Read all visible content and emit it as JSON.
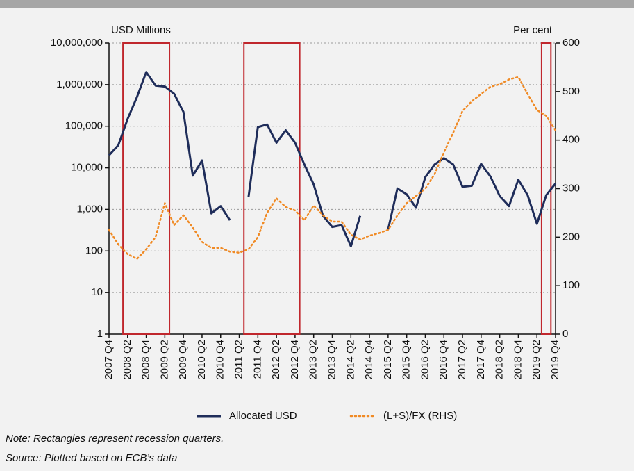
{
  "chart_data": {
    "type": "line",
    "y_label": "USD Millions",
    "y2_label": "Per cent",
    "categories": [
      "2007 Q4",
      null,
      "2008 Q2",
      null,
      "2008 Q4",
      null,
      "2009 Q2",
      null,
      "2009 Q4",
      null,
      "2010 Q2",
      null,
      "2010 Q4",
      null,
      "2011 Q2",
      null,
      "2011 Q4",
      null,
      "2012 Q2",
      null,
      "2012 Q4",
      null,
      "2013 Q2",
      null,
      "2013 Q4",
      null,
      "2014 Q2",
      null,
      "2014 Q4",
      null,
      "2015 Q2",
      null,
      "2015 Q4",
      null,
      "2016 Q2",
      null,
      "2016 Q4",
      null,
      "2017 Q2",
      null,
      "2017 Q4",
      null,
      "2018 Q2",
      null,
      "2018 Q4",
      null,
      "2019 Q2",
      null,
      "2019 Q4"
    ],
    "series": [
      {
        "name": "Allocated USD",
        "color": "#1f2d5a",
        "style": "solid",
        "values": [
          20000,
          35000,
          150000,
          500000,
          2000000,
          950000,
          900000,
          600000,
          220000,
          6500,
          15000,
          800,
          1200,
          550,
          null,
          2000,
          95000,
          110000,
          40000,
          80000,
          40000,
          12000,
          4000,
          700,
          380,
          420,
          130,
          700,
          null,
          null,
          330,
          3200,
          2300,
          1100,
          6000,
          12000,
          17000,
          12000,
          3500,
          3700,
          12500,
          6200,
          2100,
          1200,
          5200,
          2200,
          450,
          2200,
          4200
        ]
      },
      {
        "name": "(L+S)/FX (RHS)",
        "color": "#f08a24",
        "style": "dotted",
        "axis": "y2",
        "values": [
          215,
          185,
          165,
          155,
          175,
          200,
          270,
          225,
          245,
          220,
          190,
          178,
          178,
          170,
          168,
          175,
          200,
          250,
          280,
          262,
          255,
          235,
          265,
          245,
          232,
          232,
          205,
          195,
          203,
          208,
          215,
          245,
          270,
          285,
          300,
          330,
          375,
          415,
          460,
          480,
          495,
          510,
          515,
          525,
          530,
          495,
          462,
          450,
          420
        ]
      }
    ],
    "recession": [
      false,
      false,
      true,
      true,
      true,
      true,
      true,
      false,
      false,
      false,
      false,
      false,
      false,
      false,
      false,
      true,
      true,
      true,
      true,
      true,
      true,
      false,
      false,
      false,
      false,
      false,
      false,
      false,
      false,
      false,
      false,
      false,
      false,
      false,
      false,
      false,
      false,
      false,
      false,
      false,
      false,
      false,
      false,
      false,
      false,
      false,
      false,
      true,
      false
    ],
    "recession_color": "#c0272d",
    "ylog": true,
    "ylim": [
      1,
      10000000
    ],
    "yticks": [
      1,
      10,
      100,
      {
        "value": 1000,
        "label": "1,000"
      },
      {
        "value": 10000,
        "label": "10,000"
      },
      {
        "value": 100000,
        "label": "100,000"
      },
      {
        "value": 1000000,
        "label": "1,000,000"
      },
      {
        "value": 10000000,
        "label": "10,000,000"
      }
    ],
    "y2lim": [
      0,
      600
    ],
    "y2ticks": [
      0,
      100,
      200,
      300,
      400,
      500,
      600
    ],
    "grid": true,
    "legend": "bottom",
    "notes": [
      "Note: Rectangles represent recession quarters.",
      "Source: Plotted based on ECB’s data"
    ]
  }
}
